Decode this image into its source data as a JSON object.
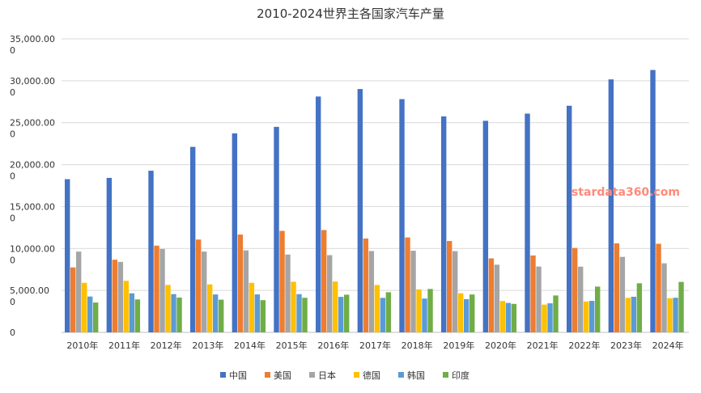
{
  "chart_data": {
    "type": "bar",
    "title": "2010-2024世界主各国家汽车产量",
    "categories": [
      "2010年",
      "2011年",
      "2012年",
      "2013年",
      "2014年",
      "2015年",
      "2016年",
      "2017年",
      "2018年",
      "2019年",
      "2020年",
      "2021年",
      "2022年",
      "2023年",
      "2024年"
    ],
    "series": [
      {
        "name": "中国",
        "color": "#4472c4",
        "values": [
          18265,
          18419,
          19272,
          22117,
          23722,
          24503,
          28119,
          29015,
          27809,
          25751,
          25225,
          26082,
          27021,
          30161,
          31282
        ]
      },
      {
        "name": "美国",
        "color": "#ed7d31",
        "values": [
          7743,
          8662,
          10336,
          11066,
          11661,
          12100,
          12198,
          11190,
          11315,
          10893,
          8822,
          9167,
          10060,
          10612,
          10562
        ]
      },
      {
        "name": "日本",
        "color": "#a5a5a5",
        "values": [
          9629,
          8399,
          9943,
          9630,
          9775,
          9278,
          9205,
          9694,
          9730,
          9685,
          8068,
          7847,
          7836,
          8998,
          8235
        ]
      },
      {
        "name": "德国",
        "color": "#ffc000",
        "values": [
          5906,
          6146,
          5649,
          5718,
          5908,
          6033,
          6063,
          5646,
          5120,
          4664,
          3742,
          3309,
          3678,
          4110,
          4069
        ]
      },
      {
        "name": "韩国",
        "color": "#5b9bd5",
        "values": [
          4272,
          4657,
          4562,
          4521,
          4525,
          4556,
          4229,
          4115,
          4029,
          3951,
          3507,
          3462,
          3757,
          4244,
          4127
        ]
      },
      {
        "name": "印度",
        "color": "#70ad47",
        "values": [
          3557,
          3927,
          4145,
          3898,
          3840,
          4126,
          4489,
          4783,
          5174,
          4516,
          3394,
          4399,
          5457,
          5852,
          6014
        ]
      }
    ],
    "yticks": [
      {
        "value": 0,
        "label": "0"
      },
      {
        "value": 5000,
        "label": "5,000.00"
      },
      {
        "value": 10000,
        "label": "10,000.00"
      },
      {
        "value": 15000,
        "label": "15,000.00"
      },
      {
        "value": 20000,
        "label": "20,000.00"
      },
      {
        "value": 25000,
        "label": "25,000.00"
      },
      {
        "value": 30000,
        "label": "30,000.00"
      },
      {
        "value": 35000,
        "label": "35,000.00"
      }
    ],
    "ytick_suffix": "0",
    "ylim": [
      0,
      35000
    ],
    "grid": true,
    "legend_position": "bottom"
  },
  "watermark": "stardata360.com"
}
